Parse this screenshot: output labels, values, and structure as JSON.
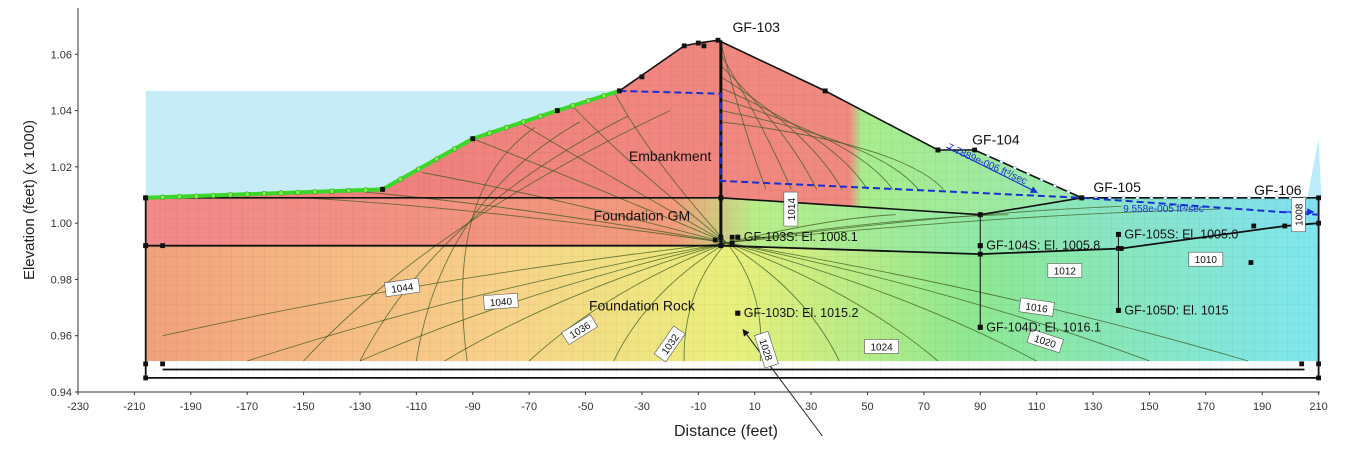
{
  "chart_data": {
    "type": "diagram",
    "xlabel": "Distance (feet)",
    "ylabel": "Elevation (feet) (x  1000)",
    "xlim": [
      -230,
      210
    ],
    "ylim": [
      0.94,
      1.075
    ],
    "x_ticks": [
      -230,
      -210,
      -190,
      -170,
      -150,
      -130,
      -110,
      -90,
      -70,
      -50,
      -30,
      -10,
      10,
      30,
      50,
      70,
      90,
      110,
      130,
      150,
      170,
      190,
      210
    ],
    "y_ticks": [
      0.94,
      0.96,
      0.98,
      1.0,
      1.02,
      1.04,
      1.06
    ],
    "regions": [
      {
        "name": "Embankment",
        "label_x": -20,
        "label_y": 1.022
      },
      {
        "name": "Foundation GM",
        "label_x": -30,
        "label_y": 1.001
      },
      {
        "name": "Foundation Rock",
        "label_x": -30,
        "label_y": 0.969
      }
    ],
    "stations": [
      {
        "label": "GF-103",
        "x": 0,
        "y": 1.068
      },
      {
        "label": "GF-104",
        "x": 85,
        "y": 1.028
      },
      {
        "label": "GF-105",
        "x": 128,
        "y": 1.011
      },
      {
        "label": "GF-106",
        "x": 185,
        "y": 1.01
      }
    ],
    "piezometers": [
      {
        "label": "GF-103S: El. 1008.1",
        "x": 4,
        "y": 0.995
      },
      {
        "label": "GF-103D: El. 1015.2",
        "x": 4,
        "y": 0.968
      },
      {
        "label": "GF-104S: El. 1005.8",
        "x": 90,
        "y": 0.992
      },
      {
        "label": "GF-104D: El. 1016.1",
        "x": 90,
        "y": 0.963
      },
      {
        "label": "GF-105S: El. 1005.0",
        "x": 139,
        "y": 0.996
      },
      {
        "label": "GF-105D: El. 1015",
        "x": 139,
        "y": 0.969
      }
    ],
    "head_contours": [
      {
        "label": "1044",
        "x": -115,
        "y": 0.977
      },
      {
        "label": "1040",
        "x": -80,
        "y": 0.972
      },
      {
        "label": "1036",
        "x": -52,
        "y": 0.962
      },
      {
        "label": "1032",
        "x": -20,
        "y": 0.957
      },
      {
        "label": "1028",
        "x": 14,
        "y": 0.955
      },
      {
        "label": "1024",
        "x": 55,
        "y": 0.956
      },
      {
        "label": "1020",
        "x": 113,
        "y": 0.958
      },
      {
        "label": "1016",
        "x": 110,
        "y": 0.97
      },
      {
        "label": "1014",
        "x": 23,
        "y": 1.005
      },
      {
        "label": "1012",
        "x": 120,
        "y": 0.983
      },
      {
        "label": "1010",
        "x": 170,
        "y": 0.987
      },
      {
        "label": "1008",
        "x": 203,
        "y": 1.003
      }
    ],
    "flux_labels": [
      {
        "label": "7.7889e-006 ft³/sec",
        "x": 92,
        "y": 1.02
      },
      {
        "label": "9.558e-005 ft³/sec",
        "x": 155,
        "y": 1.004
      }
    ],
    "geometry": {
      "embankment_surface": [
        [
          -206,
          1.009
        ],
        [
          -122,
          1.012
        ],
        [
          -90,
          1.03
        ],
        [
          -60,
          1.04
        ],
        [
          -38,
          1.047
        ],
        [
          -15,
          1.063
        ],
        [
          -10,
          1.064
        ],
        [
          -3,
          1.065
        ],
        [
          35,
          1.047
        ],
        [
          75,
          1.026
        ],
        [
          88,
          1.026
        ],
        [
          126,
          1.009
        ],
        [
          210,
          1.009
        ]
      ],
      "reservoir_level": 1.047,
      "gm_top_left": [
        [
          -206,
          1.009
        ],
        [
          -2,
          1.009
        ],
        [
          90,
          1.003
        ],
        [
          126,
          1.009
        ]
      ],
      "gm_bottom": [
        [
          -206,
          0.992
        ],
        [
          -2,
          0.992
        ],
        [
          90,
          0.989
        ],
        [
          140,
          0.991
        ],
        [
          198,
          0.999
        ],
        [
          210,
          1.0
        ]
      ],
      "mesh_bottom": 0.951,
      "base_y": 0.945,
      "phreatic": [
        [
          -38,
          1.047
        ],
        [
          -2,
          1.046
        ],
        [
          -2,
          1.015
        ],
        [
          126,
          1.009
        ],
        [
          210,
          1.003
        ]
      ]
    }
  }
}
